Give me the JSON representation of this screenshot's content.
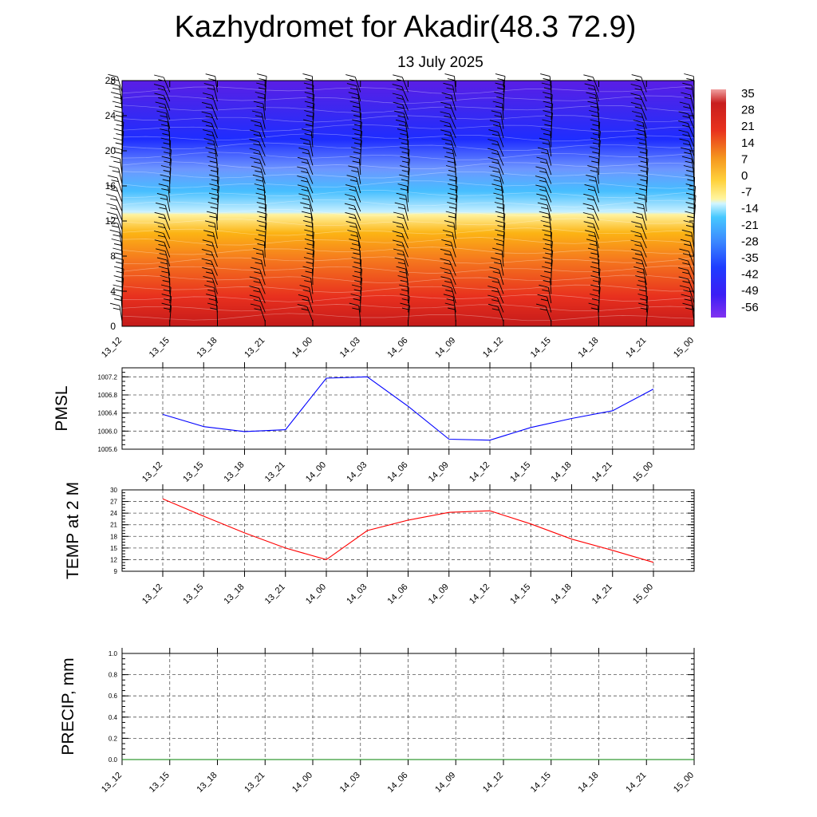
{
  "header": {
    "title": "Kazhydromet for Akadir(48.3 72.9)",
    "date": "13 July 2025"
  },
  "chart_data": [
    {
      "type": "heatmap",
      "name": "upper-air temperature cross-section",
      "x_labels": [
        "13_12",
        "13_15",
        "13_18",
        "13_21",
        "14_00",
        "14_03",
        "14_06",
        "14_09",
        "14_12",
        "14_15",
        "14_18",
        "14_21",
        "15_00"
      ],
      "y_ticks": [
        "0",
        "4",
        "8",
        "12",
        "16",
        "20",
        "24",
        "28"
      ],
      "ylim": [
        0,
        28
      ],
      "colorbar_labels": [
        "35",
        "28",
        "21",
        "14",
        "7",
        "0",
        "-7",
        "-14",
        "-21",
        "-28",
        "-35",
        "-42",
        "-49",
        "-56"
      ],
      "colorbar_range": [
        -60,
        38
      ],
      "wind_barbs": true,
      "colors": {
        "deep_red": "#c81e1e",
        "red": "#e8321e",
        "orange": "#f08c14",
        "yellow": "#fff3a0",
        "sky": "#46beff",
        "blue": "#1e2dff",
        "violet": "#5a1ee6"
      }
    },
    {
      "type": "line",
      "ylabel": "PMSL",
      "x": [
        "13_12",
        "13_15",
        "13_18",
        "13_21",
        "14_00",
        "14_03",
        "14_06",
        "14_09",
        "14_12",
        "14_15",
        "14_18",
        "14_21",
        "15_00"
      ],
      "values": [
        1006.37,
        1006.1,
        1005.99,
        1006.03,
        1007.17,
        1007.2,
        1006.55,
        1005.82,
        1005.8,
        1006.08,
        1006.28,
        1006.45,
        1006.93
      ],
      "ylim": [
        1005.6,
        1007.4
      ],
      "y_ticks": [
        "1005.6",
        "1006.0",
        "1006.4",
        "1006.8",
        "1007.2"
      ],
      "grid": true,
      "color": "#0000ff"
    },
    {
      "type": "line",
      "ylabel": "TEMP at 2 M",
      "x": [
        "13_12",
        "13_15",
        "13_18",
        "13_21",
        "14_00",
        "14_03",
        "14_06",
        "14_09",
        "14_12",
        "14_15",
        "14_18",
        "14_21",
        "15_00"
      ],
      "values": [
        27.7,
        23.2,
        18.9,
        15,
        12,
        19.5,
        22.2,
        24.2,
        24.6,
        21.2,
        17.3,
        14.4,
        11.3
      ],
      "ylim": [
        9,
        30
      ],
      "y_ticks": [
        "9",
        "12",
        "15",
        "18",
        "21",
        "24",
        "27",
        "30"
      ],
      "grid": true,
      "color": "#ff0000"
    },
    {
      "type": "line",
      "ylabel": "PRECIP, mm",
      "x": [
        "13_12",
        "13_15",
        "13_18",
        "13_21",
        "14_00",
        "14_03",
        "14_06",
        "14_09",
        "14_12",
        "14_15",
        "14_18",
        "14_21",
        "15_00"
      ],
      "values": [
        0,
        0,
        0,
        0,
        0,
        0,
        0,
        0,
        0,
        0,
        0,
        0,
        0
      ],
      "ylim": [
        0,
        1
      ],
      "y_ticks": [
        "0.0",
        "0.2",
        "0.4",
        "0.6",
        "0.8",
        "1.0"
      ],
      "grid": true,
      "color": "#008000"
    }
  ]
}
